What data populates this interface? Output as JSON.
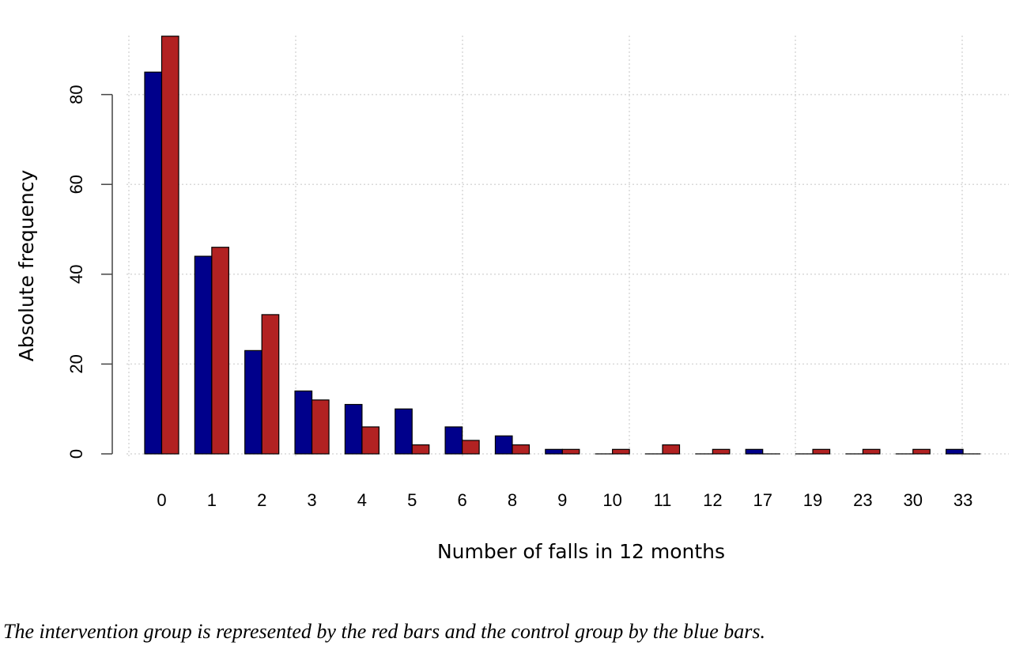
{
  "chart_data": {
    "type": "bar",
    "title": "",
    "xlabel": "Number of falls in 12 months",
    "ylabel": "Absolute frequency",
    "categories": [
      "0",
      "1",
      "2",
      "3",
      "4",
      "5",
      "6",
      "8",
      "9",
      "10",
      "11",
      "12",
      "17",
      "19",
      "23",
      "30",
      "33"
    ],
    "series": [
      {
        "color": "#00008b",
        "values": [
          85,
          44,
          23,
          14,
          11,
          10,
          6,
          4,
          1,
          0,
          0,
          0,
          1,
          0,
          0,
          0,
          1
        ]
      },
      {
        "color": "#b22222",
        "values": [
          93,
          46,
          31,
          12,
          6,
          2,
          3,
          2,
          1,
          1,
          2,
          1,
          0,
          1,
          1,
          1,
          0
        ]
      }
    ],
    "ylim": [
      0,
      94
    ],
    "yticks": [
      0,
      20,
      40,
      60,
      80
    ],
    "grid": true,
    "legend": "none"
  },
  "caption": "The intervention group is represented by the red bars and the control group by the blue bars."
}
